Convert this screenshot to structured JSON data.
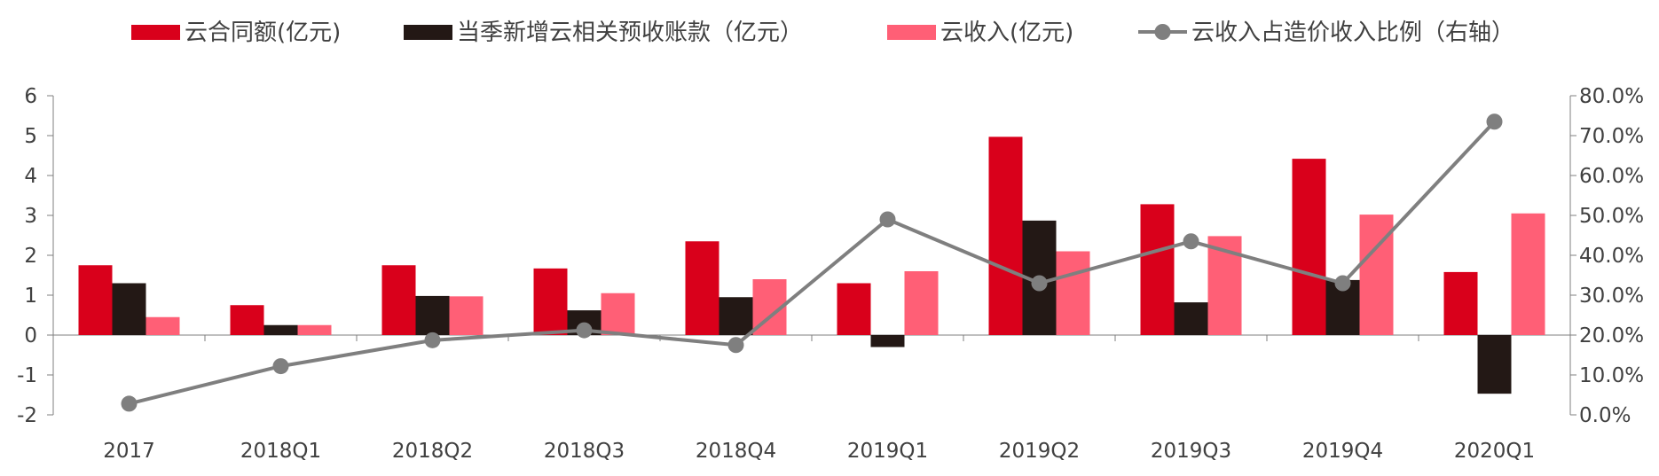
{
  "chart_data": {
    "type": "bar",
    "title": "",
    "categories": [
      "2017",
      "2018Q1",
      "2018Q2",
      "2018Q3",
      "2018Q4",
      "2019Q1",
      "2019Q2",
      "2019Q3",
      "2019Q4",
      "2020Q1"
    ],
    "series": [
      {
        "name": "云合同额(亿元)",
        "type": "bar",
        "axis": "left",
        "color": "#d9001b",
        "values": [
          1.75,
          0.75,
          1.75,
          1.67,
          2.35,
          1.3,
          4.97,
          3.28,
          4.42,
          1.58
        ]
      },
      {
        "name": "当季新增云相关预收账款（亿元）",
        "type": "bar",
        "axis": "left",
        "color": "#231815",
        "values": [
          1.3,
          0.25,
          0.98,
          0.62,
          0.95,
          -0.3,
          2.87,
          0.82,
          1.38,
          -1.47
        ]
      },
      {
        "name": "云收入(亿元)",
        "type": "bar",
        "axis": "left",
        "color": "#ff5f76",
        "values": [
          0.45,
          0.25,
          0.97,
          1.05,
          1.4,
          1.6,
          2.1,
          2.48,
          3.02,
          3.05
        ]
      },
      {
        "name": "云收入占造价收入比例（右轴）",
        "type": "line",
        "axis": "right",
        "color": "#7f7f7f",
        "values": [
          0.028,
          0.122,
          0.187,
          0.212,
          0.175,
          0.49,
          0.33,
          0.435,
          0.33,
          0.735
        ]
      }
    ],
    "y_left": {
      "min": -2,
      "max": 6,
      "ticks": [
        "-2",
        "-1",
        "0",
        "1",
        "2",
        "3",
        "4",
        "5",
        "6"
      ]
    },
    "y_right": {
      "min": 0,
      "max": 0.8,
      "ticks": [
        "0.0%",
        "10.0%",
        "20.0%",
        "30.0%",
        "40.0%",
        "50.0%",
        "60.0%",
        "70.0%",
        "80.0%"
      ]
    },
    "legend_position": "top",
    "grid": false
  }
}
